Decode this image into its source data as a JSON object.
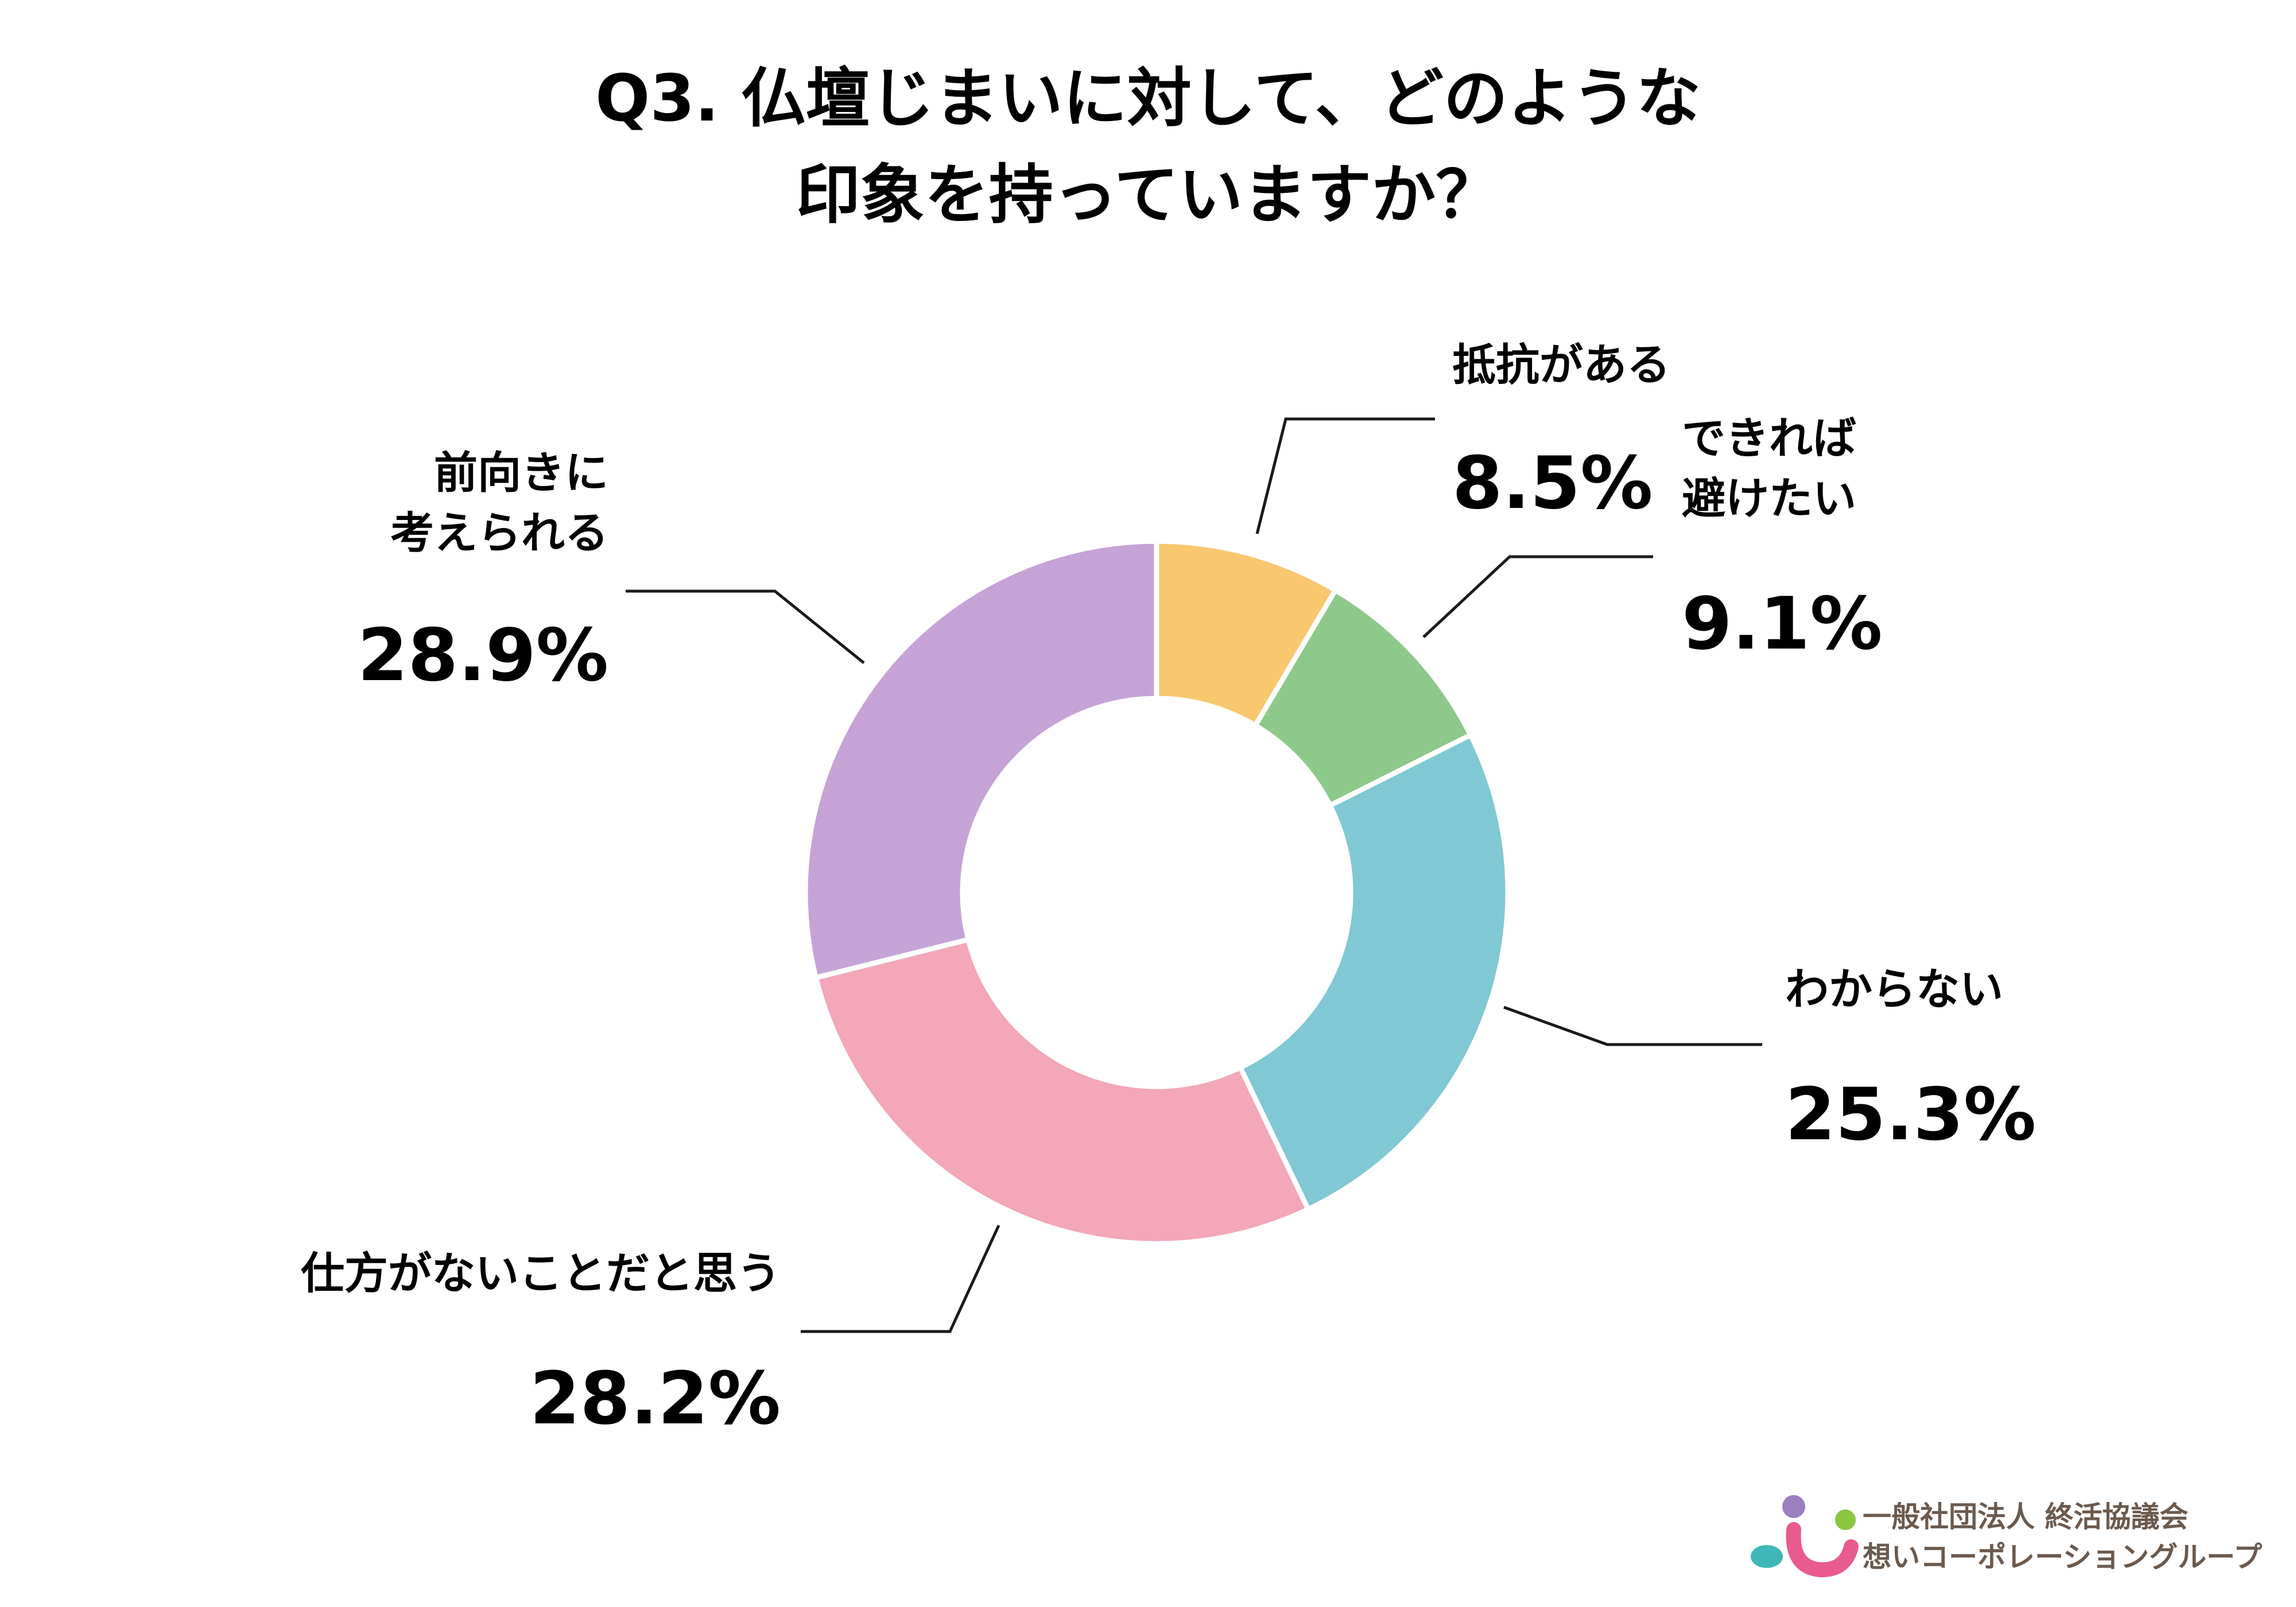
{
  "chart_data": {
    "type": "pie",
    "donut": true,
    "title_lines": [
      "Q3. 仏壇じまいに対して、どのような",
      "印象を持っていますか？"
    ],
    "slices": [
      {
        "label_lines": [
          "抵抗がある"
        ],
        "value": 8.5,
        "value_label": "8.5%",
        "color": "#F8C76E"
      },
      {
        "label_lines": [
          "できれば",
          "避けたい"
        ],
        "value": 9.1,
        "value_label": "9.1%",
        "color": "#8DC98A"
      },
      {
        "label_lines": [
          "わからない"
        ],
        "value": 25.3,
        "value_label": "25.3%",
        "color": "#80C8D4"
      },
      {
        "label_lines": [
          "仕方がないことだと思う"
        ],
        "value": 28.2,
        "value_label": "28.2%",
        "color": "#F3A7B9"
      },
      {
        "label_lines": [
          "前向きに",
          "考えられる"
        ],
        "value": 28.9,
        "value_label": "28.9%",
        "color": "#C6A3D6"
      }
    ]
  },
  "logo": {
    "line1": "一般社団法人 終活協議会",
    "line2": "想いコーポレーショングループ",
    "colors": [
      "#9B7FBF",
      "#8CC63F",
      "#3EB7B6",
      "#E95A8F"
    ]
  }
}
